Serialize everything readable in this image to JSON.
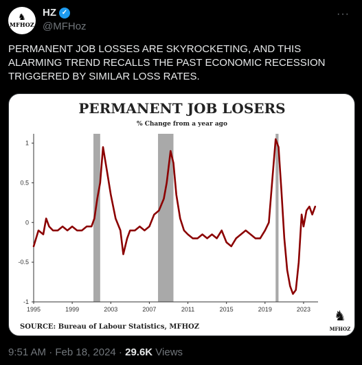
{
  "header": {
    "name": "HZ",
    "handle": "@MFHoz",
    "avatar_text": "MFHOZ",
    "more_icon": "more-dots-icon",
    "verified_color": "#1d9bf0"
  },
  "tweet": {
    "text": "PERMANENT JOB LOSSES ARE SKYROCKETING, AND THIS ALARMING TREND RECALLS THE PAST ECONOMIC RECESSION TRIGGERED BY SIMILAR LOSS RATES."
  },
  "chart_data": {
    "type": "line",
    "title": "PERMANENT JOB LOSERS",
    "subtitle": "% Change from a year ago",
    "source": "SOURCE: Bureau of Labour Statistics, MFHOZ",
    "logo_text": "MFHOZ",
    "line_color": "#8b0000",
    "shade_color": "#a9a9a9",
    "grid": false,
    "xlim": [
      1995,
      2024.5
    ],
    "ylim": [
      -1,
      1.1
    ],
    "xticks": [
      "1995",
      "1999",
      "2003",
      "2007",
      "2011",
      "2015",
      "2019",
      "2023"
    ],
    "yticks": [
      "1",
      "0.5",
      "0",
      "-0.5",
      "-1"
    ],
    "recessions": [
      [
        2001.2,
        2001.9
      ],
      [
        2007.9,
        2009.5
      ],
      [
        2020.1,
        2020.4
      ]
    ],
    "series": [
      {
        "x": [
          1995.0,
          1995.5,
          1996.0,
          1996.3,
          1996.6,
          1997.0,
          1997.5,
          1998.0,
          1998.5,
          1999.0,
          1999.5,
          2000.0,
          2000.5,
          2001.0,
          2001.3,
          2001.6,
          2001.9,
          2002.2,
          2002.6,
          2003.0,
          2003.5,
          2004.0,
          2004.3,
          2004.7,
          2005.0,
          2005.5,
          2006.0,
          2006.5,
          2007.0,
          2007.5,
          2008.0,
          2008.5,
          2008.8,
          2009.2,
          2009.5,
          2009.8,
          2010.2,
          2010.6,
          2011.0,
          2011.5,
          2012.0,
          2012.5,
          2013.0,
          2013.5,
          2014.0,
          2014.5,
          2015.0,
          2015.5,
          2016.0,
          2016.5,
          2017.0,
          2017.5,
          2018.0,
          2018.5,
          2019.0,
          2019.4,
          2019.8,
          2020.1,
          2020.4,
          2020.7,
          2021.0,
          2021.3,
          2021.6,
          2021.9,
          2022.2,
          2022.5,
          2022.8,
          2023.0,
          2023.3,
          2023.6,
          2023.9,
          2024.2
        ],
        "y": [
          -0.3,
          -0.1,
          -0.15,
          0.05,
          -0.05,
          -0.1,
          -0.1,
          -0.05,
          -0.1,
          -0.05,
          -0.1,
          -0.1,
          -0.05,
          -0.05,
          0.05,
          0.3,
          0.5,
          0.95,
          0.65,
          0.35,
          0.05,
          -0.1,
          -0.4,
          -0.2,
          -0.1,
          -0.1,
          -0.05,
          -0.1,
          -0.05,
          0.1,
          0.15,
          0.3,
          0.5,
          0.9,
          0.75,
          0.35,
          0.05,
          -0.1,
          -0.15,
          -0.2,
          -0.2,
          -0.15,
          -0.2,
          -0.15,
          -0.2,
          -0.1,
          -0.25,
          -0.3,
          -0.2,
          -0.15,
          -0.1,
          -0.15,
          -0.2,
          -0.2,
          -0.1,
          0.0,
          0.6,
          1.05,
          0.95,
          0.4,
          -0.2,
          -0.6,
          -0.8,
          -0.9,
          -0.85,
          -0.5,
          0.1,
          -0.05,
          0.15,
          0.2,
          0.1,
          0.2
        ]
      }
    ]
  },
  "footer": {
    "time": "9:51 AM · Feb 18, 2024 · ",
    "views_count": "29.6K",
    "views_label": " Views"
  }
}
